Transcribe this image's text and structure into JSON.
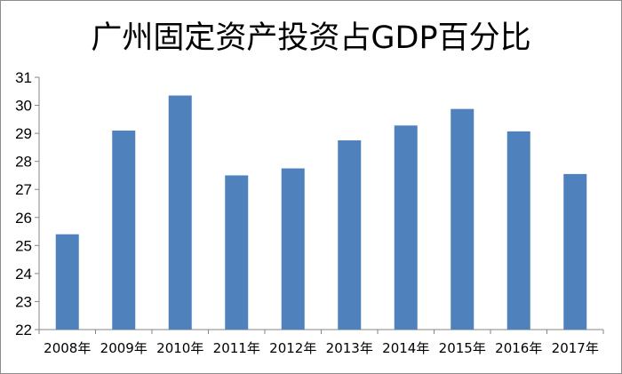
{
  "colors": {
    "bar": "#4f81bd",
    "axis": "#868686",
    "border": "#8c8c8c",
    "text": "#000000"
  },
  "chart_data": {
    "type": "bar",
    "title": "广州固定资产投资占GDP百分比",
    "xlabel": "",
    "ylabel": "",
    "categories": [
      "2008年",
      "2009年",
      "2010年",
      "2011年",
      "2012年",
      "2013年",
      "2014年",
      "2015年",
      "2016年",
      "2017年"
    ],
    "values": [
      25.4,
      29.1,
      30.35,
      27.5,
      27.75,
      28.75,
      29.28,
      29.87,
      29.07,
      27.55
    ],
    "ylim": [
      22,
      31
    ],
    "yticks": [
      "22",
      "23",
      "24",
      "25",
      "26",
      "27",
      "28",
      "29",
      "30",
      "31"
    ],
    "grid": false,
    "legend": "none"
  }
}
